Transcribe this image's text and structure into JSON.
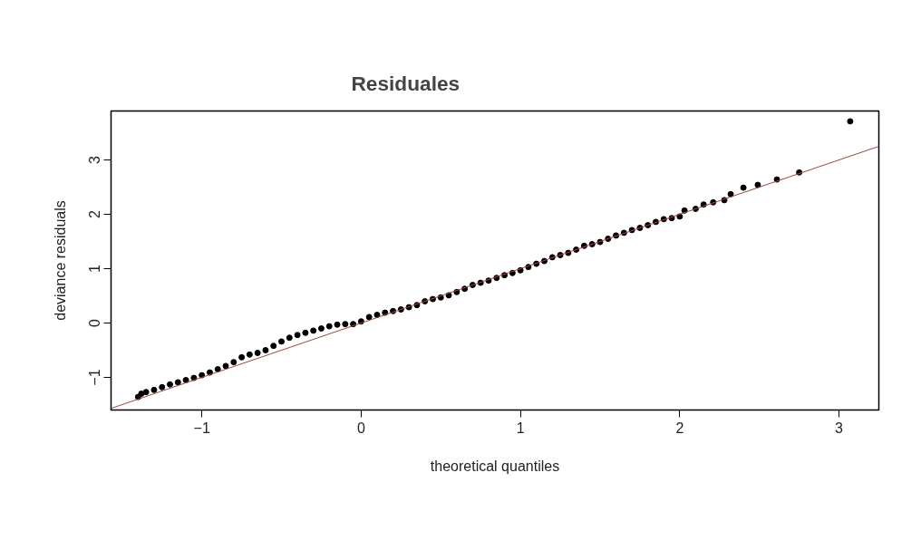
{
  "chart_data": {
    "type": "scatter",
    "title": "Residuales",
    "xlabel": "theoretical quantiles",
    "ylabel": "deviance residuals",
    "xlim": [
      -1.57,
      3.25
    ],
    "ylim": [
      -1.6,
      3.9
    ],
    "xticks": [
      -1,
      0,
      1,
      2,
      3
    ],
    "yticks": [
      -1,
      0,
      1,
      2,
      3
    ],
    "grid": false,
    "series": [
      {
        "marker": "circle",
        "color": "#000000",
        "x": [
          -1.4,
          -1.38,
          -1.35,
          -1.3,
          -1.25,
          -1.2,
          -1.15,
          -1.1,
          -1.05,
          -1.0,
          -0.95,
          -0.9,
          -0.85,
          -0.8,
          -0.75,
          -0.7,
          -0.65,
          -0.6,
          -0.55,
          -0.5,
          -0.45,
          -0.4,
          -0.35,
          -0.3,
          -0.25,
          -0.2,
          -0.15,
          -0.1,
          -0.05,
          0.0,
          0.05,
          0.1,
          0.15,
          0.2,
          0.25,
          0.3,
          0.35,
          0.4,
          0.45,
          0.5,
          0.55,
          0.6,
          0.65,
          0.7,
          0.75,
          0.8,
          0.85,
          0.9,
          0.95,
          1.0,
          1.05,
          1.1,
          1.15,
          1.2,
          1.25,
          1.3,
          1.35,
          1.4,
          1.45,
          1.5,
          1.55,
          1.6,
          1.65,
          1.7,
          1.75,
          1.8,
          1.85,
          1.9,
          1.95,
          2.0,
          2.03,
          2.1,
          2.15,
          2.21,
          2.28,
          2.32,
          2.4,
          2.49,
          2.61,
          2.75,
          3.07
        ],
        "values": [
          -1.36,
          -1.3,
          -1.27,
          -1.23,
          -1.18,
          -1.13,
          -1.09,
          -1.05,
          -1.01,
          -0.96,
          -0.91,
          -0.85,
          -0.79,
          -0.72,
          -0.63,
          -0.58,
          -0.55,
          -0.5,
          -0.42,
          -0.34,
          -0.27,
          -0.22,
          -0.18,
          -0.14,
          -0.1,
          -0.06,
          -0.03,
          -0.02,
          -0.02,
          0.03,
          0.11,
          0.15,
          0.19,
          0.22,
          0.25,
          0.29,
          0.33,
          0.4,
          0.44,
          0.47,
          0.51,
          0.57,
          0.63,
          0.7,
          0.74,
          0.78,
          0.83,
          0.88,
          0.92,
          0.97,
          1.03,
          1.09,
          1.14,
          1.21,
          1.25,
          1.29,
          1.35,
          1.42,
          1.45,
          1.49,
          1.55,
          1.61,
          1.66,
          1.71,
          1.75,
          1.8,
          1.86,
          1.91,
          1.93,
          1.96,
          2.07,
          2.1,
          2.18,
          2.22,
          2.26,
          2.37,
          2.49,
          2.54,
          2.64,
          2.77,
          3.71
        ]
      },
      {
        "type": "line",
        "color": "#a0453f",
        "x": [
          -1.57,
          3.25
        ],
        "values": [
          -1.57,
          3.25
        ]
      }
    ]
  }
}
